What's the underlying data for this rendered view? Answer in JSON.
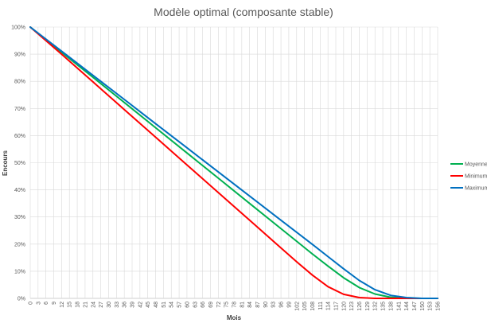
{
  "chart_data": {
    "type": "line",
    "title": "Modèle optimal (composante stable)",
    "xlabel": "Mois",
    "ylabel": "Encours",
    "xlim": [
      0,
      156
    ],
    "ylim": [
      0,
      100
    ],
    "x_tick_step": 3,
    "y_ticks": [
      0,
      10,
      20,
      30,
      40,
      50,
      60,
      70,
      80,
      90,
      100
    ],
    "y_tick_labels": [
      "0%",
      "10%",
      "20%",
      "30%",
      "40%",
      "50%",
      "60%",
      "70%",
      "80%",
      "90%",
      "100%"
    ],
    "grid": true,
    "legend_position": "right",
    "series": [
      {
        "name": "Moyenne",
        "color": "#00b050",
        "x": [
          0,
          12,
          24,
          36,
          48,
          60,
          72,
          84,
          96,
          108,
          114,
          120,
          126,
          132,
          138,
          144,
          150,
          156
        ],
        "values": [
          100,
          90.7,
          81.5,
          72.2,
          62.9,
          53.6,
          44.3,
          35.0,
          25.7,
          16.4,
          11.9,
          7.6,
          4.0,
          1.6,
          0.4,
          0.1,
          0,
          0
        ]
      },
      {
        "name": "Minimum",
        "color": "#ff0000",
        "x": [
          0,
          12,
          24,
          36,
          48,
          60,
          72,
          84,
          96,
          102,
          108,
          114,
          120,
          126,
          132,
          138,
          144,
          150,
          156
        ],
        "values": [
          100,
          90.0,
          79.8,
          69.6,
          59.4,
          49.2,
          39.0,
          28.8,
          18.6,
          13.5,
          8.6,
          4.3,
          1.5,
          0.3,
          0,
          0,
          0,
          0,
          0
        ]
      },
      {
        "name": "Maximum",
        "color": "#0070c0",
        "x": [
          0,
          12,
          24,
          36,
          48,
          60,
          72,
          84,
          96,
          108,
          114,
          120,
          126,
          132,
          138,
          144,
          150,
          156
        ],
        "values": [
          100,
          91.1,
          82.2,
          73.3,
          64.4,
          55.5,
          46.6,
          37.7,
          28.8,
          19.9,
          15.4,
          10.9,
          6.6,
          3.2,
          1.1,
          0.3,
          0,
          0
        ]
      }
    ]
  }
}
